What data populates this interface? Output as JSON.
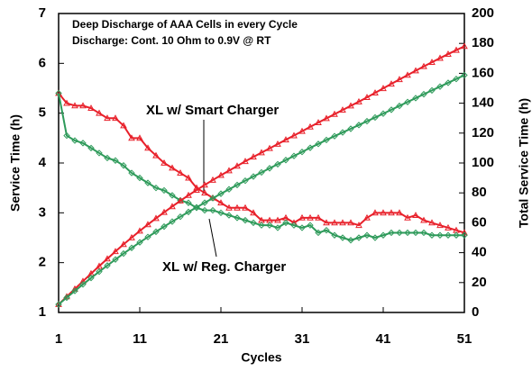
{
  "chart_data": {
    "type": "line",
    "title": "Deep Discharge of AAA Cells in every Cycle",
    "subtitle": "Discharge: Cont. 10 Ohm to 0.9V @ RT",
    "x_label": "Cycles",
    "y_label": "Service Time (h)",
    "y2_label": "Total Service Time (h)",
    "x": [
      1,
      2,
      3,
      4,
      5,
      6,
      7,
      8,
      9,
      10,
      11,
      12,
      13,
      14,
      15,
      16,
      17,
      18,
      19,
      20,
      21,
      22,
      23,
      24,
      25,
      26,
      27,
      28,
      29,
      30,
      31,
      32,
      33,
      34,
      35,
      36,
      37,
      38,
      39,
      40,
      41,
      42,
      43,
      44,
      45,
      46,
      47,
      48,
      49,
      50,
      51
    ],
    "xlim": [
      1,
      51
    ],
    "xticks": [
      1,
      11,
      21,
      31,
      41,
      51
    ],
    "ylim": [
      1,
      7
    ],
    "yticks": [
      1,
      2,
      3,
      4,
      5,
      6,
      7
    ],
    "y2lim": [
      0,
      200
    ],
    "y2ticks": [
      0,
      20,
      40,
      60,
      80,
      100,
      120,
      140,
      160,
      180,
      200
    ],
    "series": [
      {
        "name": "XL w/ Smart Charger",
        "color": "#e8202a",
        "marker": "triangle",
        "values": [
          5.4,
          5.2,
          5.15,
          5.15,
          5.1,
          5.0,
          4.9,
          4.9,
          4.75,
          4.5,
          4.5,
          4.3,
          4.15,
          4.0,
          3.9,
          3.8,
          3.7,
          3.5,
          3.4,
          3.3,
          3.2,
          3.1,
          3.1,
          3.1,
          3.0,
          2.85,
          2.85,
          2.85,
          2.9,
          2.8,
          2.9,
          2.9,
          2.9,
          2.8,
          2.8,
          2.8,
          2.8,
          2.75,
          2.9,
          3.0,
          3.0,
          3.0,
          3.0,
          2.9,
          2.95,
          2.85,
          2.8,
          2.75,
          2.7,
          2.65,
          2.6
        ]
      },
      {
        "name": "XL w/ Reg. Charger",
        "color": "#2e9a5a",
        "marker": "diamond",
        "values": [
          5.4,
          4.55,
          4.45,
          4.4,
          4.3,
          4.2,
          4.1,
          4.05,
          3.95,
          3.8,
          3.7,
          3.6,
          3.5,
          3.45,
          3.35,
          3.25,
          3.2,
          3.1,
          3.05,
          3.05,
          3.0,
          2.95,
          2.9,
          2.85,
          2.8,
          2.75,
          2.75,
          2.7,
          2.8,
          2.75,
          2.7,
          2.75,
          2.6,
          2.65,
          2.55,
          2.5,
          2.45,
          2.5,
          2.55,
          2.5,
          2.55,
          2.6,
          2.6,
          2.6,
          2.6,
          2.6,
          2.55,
          2.55,
          2.55,
          2.55,
          2.55
        ]
      },
      {
        "color": "#e8202a",
        "marker": "triangle",
        "axis": "y2",
        "values": [
          5.4,
          10.6,
          15.75,
          20.9,
          26.0,
          31.0,
          35.9,
          40.8,
          45.55,
          50.05,
          54.55,
          58.85,
          63.0,
          67.0,
          70.9,
          74.7,
          78.4,
          81.9,
          85.3,
          88.6,
          91.8,
          94.9,
          98.0,
          101.1,
          104.1,
          106.95,
          109.8,
          112.65,
          115.55,
          118.35,
          121.25,
          124.15,
          127.05,
          129.85,
          132.65,
          135.45,
          138.25,
          141.0,
          143.9,
          146.9,
          149.9,
          152.9,
          155.9,
          158.8,
          161.75,
          164.6,
          167.4,
          170.15,
          172.85,
          175.5,
          178.1
        ]
      },
      {
        "color": "#2e9a5a",
        "marker": "diamond",
        "axis": "y2",
        "values": [
          5.4,
          9.95,
          14.4,
          18.8,
          23.1,
          27.3,
          31.4,
          35.45,
          39.4,
          43.2,
          46.9,
          50.5,
          54.0,
          57.45,
          60.8,
          64.05,
          67.25,
          70.35,
          73.4,
          76.45,
          79.45,
          82.4,
          85.3,
          88.15,
          90.95,
          93.7,
          96.45,
          99.15,
          101.95,
          104.7,
          107.4,
          110.15,
          112.75,
          115.4,
          117.95,
          120.45,
          122.9,
          125.4,
          127.95,
          130.45,
          133.0,
          135.6,
          138.2,
          140.8,
          143.4,
          146.0,
          148.55,
          151.1,
          153.65,
          156.2,
          158.75
        ]
      }
    ]
  }
}
